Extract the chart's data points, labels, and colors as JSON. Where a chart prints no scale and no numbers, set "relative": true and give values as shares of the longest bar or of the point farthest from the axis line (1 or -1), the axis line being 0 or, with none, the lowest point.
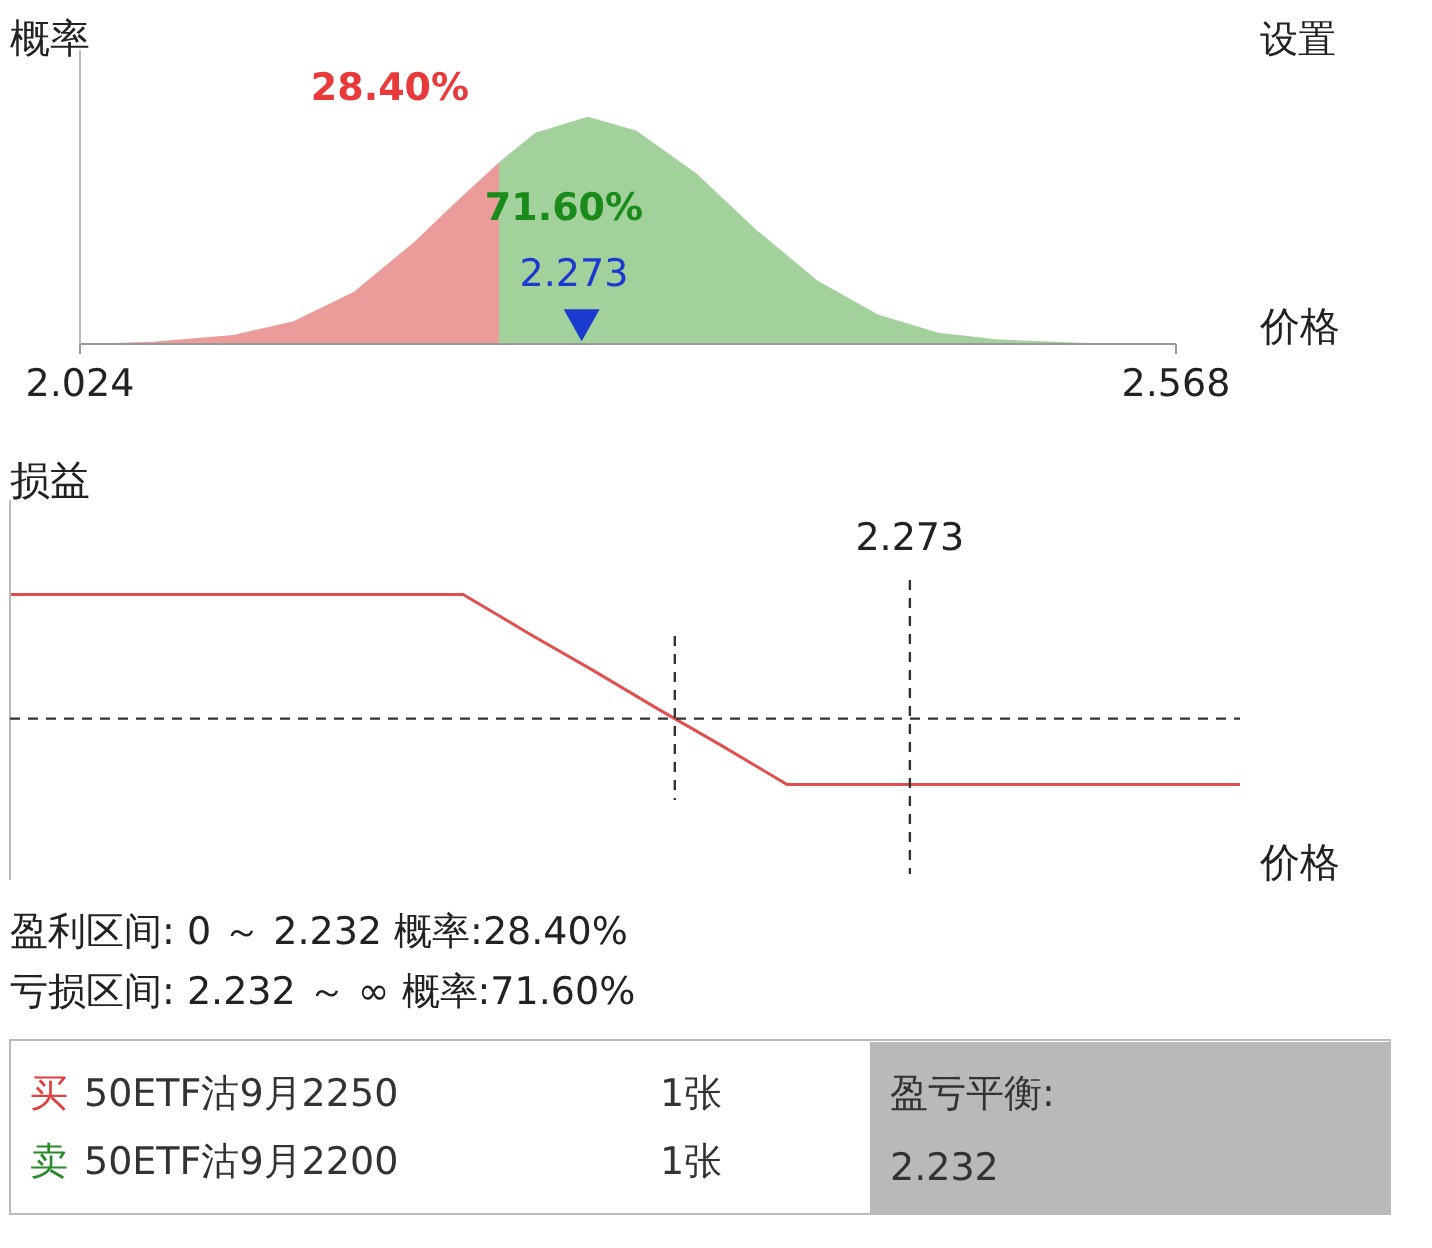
{
  "chart_data": [
    {
      "type": "area",
      "ylabel": "概率",
      "xlabel": "价格",
      "relative": true,
      "xlim": [
        2.024,
        2.568
      ],
      "xticks": [
        2.024,
        2.568
      ],
      "grid": false,
      "series": [
        {
          "color": "#eb9c9a",
          "x": [
            2.024,
            2.06,
            2.1,
            2.13,
            2.16,
            2.19,
            2.21,
            2.232
          ],
          "values": [
            0,
            0.01,
            0.04,
            0.1,
            0.23,
            0.45,
            0.62,
            0.8
          ]
        },
        {
          "color": "#a2d19c",
          "x": [
            2.232,
            2.25,
            2.276,
            2.3,
            2.33,
            2.36,
            2.39,
            2.42,
            2.45,
            2.48,
            2.52,
            2.568
          ],
          "values": [
            0.8,
            0.93,
            1,
            0.94,
            0.75,
            0.5,
            0.28,
            0.13,
            0.05,
            0.02,
            0.005,
            0
          ]
        },
        {
          "type": "scatter",
          "marker": "triangle",
          "color": "#1a3ad0",
          "x": [
            2.273
          ],
          "values": [
            0.1
          ]
        }
      ],
      "annotations": [
        "28.40%",
        "71.60%",
        "2.273",
        "设置"
      ]
    },
    {
      "type": "line",
      "ylabel": "损益",
      "xlabel": "价格",
      "relative": true,
      "categories": [
        null,
        null,
        null,
        null,
        null,
        null,
        null,
        null,
        null,
        null,
        null,
        null,
        null,
        null,
        null,
        null,
        null,
        null,
        null,
        null
      ],
      "grid": false,
      "series": [
        {
          "color": "#e05050",
          "values": [
            1,
            1,
            1,
            1,
            1,
            1,
            1,
            1,
            0.69,
            0.39,
            0.08,
            -0.22,
            -0.53,
            -0.53,
            -0.53,
            -0.53,
            -0.53,
            -0.53,
            -0.53,
            -0.53
          ]
        }
      ],
      "ref_lines": [
        {
          "axis": "y",
          "value": 0,
          "line_style": "dashed",
          "color": "#333333"
        }
      ],
      "annotations": [
        "2.273",
        "盈利区间: 0 ～ 2.232   概率:28.40%",
        "亏损区间: 2.232 ～ ∞   概率:71.60%"
      ]
    },
    {
      "type": "other",
      "annotations": [
        "买",
        "50ETF沽9月2250",
        "1张",
        "卖",
        "50ETF沽9月2200",
        "1张",
        "盈亏平衡:",
        "2.232"
      ]
    }
  ]
}
